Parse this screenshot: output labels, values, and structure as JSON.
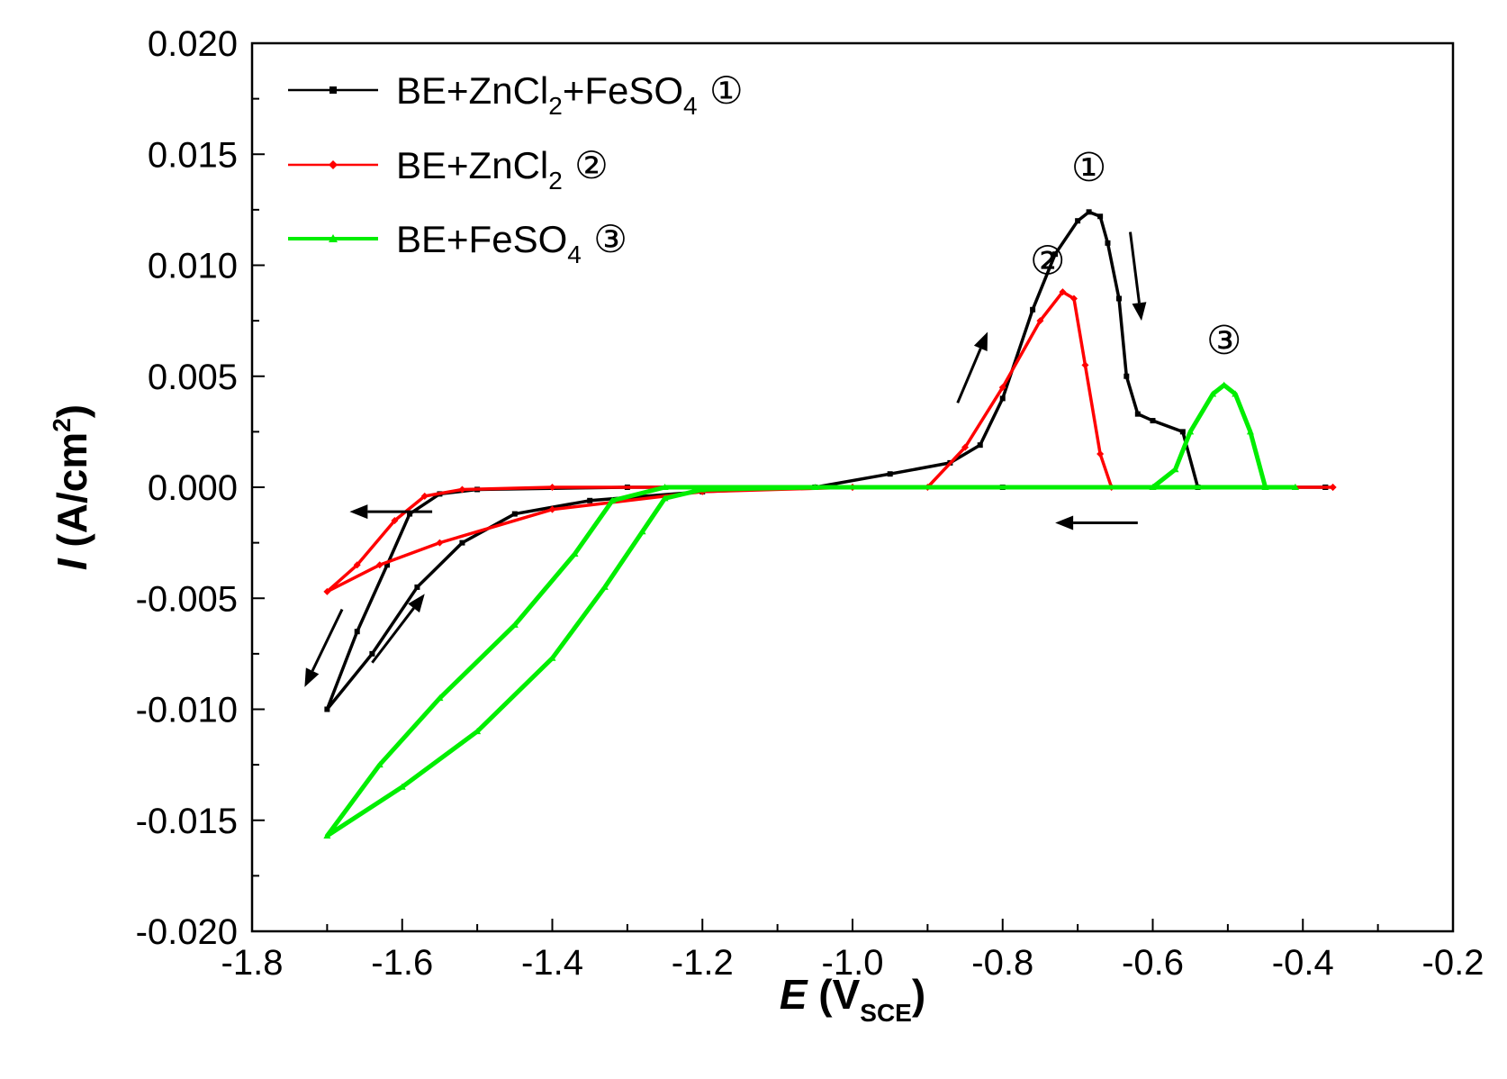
{
  "chart_data": {
    "type": "line",
    "title": "",
    "xlabel": {
      "main": "E",
      "paren_open": "(V",
      "sub": "SCE",
      "paren_close": ")"
    },
    "ylabel": {
      "main": "I",
      "rest": "(A/cm",
      "sup": "2",
      "close": ")"
    },
    "xlim": [
      -1.8,
      -0.2
    ],
    "ylim": [
      -0.02,
      0.02
    ],
    "x_ticks": [
      -1.8,
      -1.6,
      -1.4,
      -1.2,
      -1.0,
      -0.8,
      -0.6,
      -0.4,
      -0.2
    ],
    "x_tick_labels": [
      "-1.8",
      "-1.6",
      "-1.4",
      "-1.2",
      "-1.0",
      "-0.8",
      "-0.6",
      "-0.4",
      "-0.2"
    ],
    "y_ticks": [
      -0.02,
      -0.015,
      -0.01,
      -0.005,
      0.0,
      0.005,
      0.01,
      0.015,
      0.02
    ],
    "y_tick_labels": [
      "-0.020",
      "-0.015",
      "-0.010",
      "-0.005",
      "0.000",
      "0.005",
      "0.010",
      "0.015",
      "0.020"
    ],
    "legend_position": "top-left",
    "series": [
      {
        "name": "BE+ZnCl2+FeSO4 ①",
        "legend_parts": [
          "BE+ZnCl",
          "2",
          "+FeSO",
          "4",
          " ①"
        ],
        "color": "#000000",
        "marker": "square",
        "points": [
          [
            -0.37,
            0.0
          ],
          [
            -0.54,
            0.0
          ],
          [
            -0.56,
            0.0025
          ],
          [
            -0.6,
            0.003
          ],
          [
            -0.62,
            0.0033
          ],
          [
            -0.635,
            0.005
          ],
          [
            -0.645,
            0.0085
          ],
          [
            -0.66,
            0.011
          ],
          [
            -0.67,
            0.0122
          ],
          [
            -0.685,
            0.0124
          ],
          [
            -0.7,
            0.012
          ],
          [
            -0.73,
            0.0105
          ],
          [
            -0.76,
            0.008
          ],
          [
            -0.8,
            0.004
          ],
          [
            -0.83,
            0.0019
          ],
          [
            -0.87,
            0.0011
          ],
          [
            -0.95,
            0.0006
          ],
          [
            -1.05,
            0.0
          ],
          [
            -1.2,
            -0.0002
          ],
          [
            -1.35,
            -0.0006
          ],
          [
            -1.45,
            -0.0012
          ],
          [
            -1.52,
            -0.0025
          ],
          [
            -1.58,
            -0.0045
          ],
          [
            -1.64,
            -0.0075
          ],
          [
            -1.7,
            -0.01
          ],
          [
            -1.66,
            -0.0065
          ],
          [
            -1.62,
            -0.0035
          ],
          [
            -1.59,
            -0.0012
          ],
          [
            -1.55,
            -0.0003
          ],
          [
            -1.5,
            -0.0001
          ],
          [
            -1.3,
            0.0
          ],
          [
            -0.8,
            0.0
          ],
          [
            -0.37,
            0.0
          ]
        ]
      },
      {
        "name": "BE+ZnCl2 ②",
        "legend_parts": [
          "BE+ZnCl",
          "2",
          "",
          "",
          " ②"
        ],
        "color": "#ff0000",
        "marker": "diamond",
        "points": [
          [
            -0.36,
            0.0
          ],
          [
            -0.655,
            0.0
          ],
          [
            -0.67,
            0.0015
          ],
          [
            -0.69,
            0.0055
          ],
          [
            -0.705,
            0.0085
          ],
          [
            -0.72,
            0.0088
          ],
          [
            -0.75,
            0.0075
          ],
          [
            -0.8,
            0.0045
          ],
          [
            -0.85,
            0.0018
          ],
          [
            -0.9,
            0.0
          ],
          [
            -1.0,
            0.0
          ],
          [
            -1.2,
            -0.0002
          ],
          [
            -1.4,
            -0.001
          ],
          [
            -1.55,
            -0.0025
          ],
          [
            -1.63,
            -0.0035
          ],
          [
            -1.7,
            -0.0047
          ],
          [
            -1.66,
            -0.0035
          ],
          [
            -1.61,
            -0.0015
          ],
          [
            -1.57,
            -0.0004
          ],
          [
            -1.52,
            -0.0001
          ],
          [
            -1.4,
            0.0
          ],
          [
            -1.0,
            0.0
          ],
          [
            -0.36,
            0.0
          ]
        ]
      },
      {
        "name": "BE+FeSO4 ③",
        "legend_parts": [
          "BE+FeSO",
          "4",
          "",
          "",
          " ③"
        ],
        "color": "#00ee00",
        "marker": "triangle",
        "points": [
          [
            -0.41,
            0.0
          ],
          [
            -0.45,
            0.0
          ],
          [
            -0.47,
            0.0025
          ],
          [
            -0.49,
            0.0042
          ],
          [
            -0.505,
            0.0046
          ],
          [
            -0.52,
            0.0042
          ],
          [
            -0.55,
            0.0025
          ],
          [
            -0.57,
            0.0008
          ],
          [
            -0.6,
            0.0
          ],
          [
            -1.05,
            0.0
          ],
          [
            -1.2,
            -0.0001
          ],
          [
            -1.25,
            -0.0005
          ],
          [
            -1.28,
            -0.002
          ],
          [
            -1.33,
            -0.0045
          ],
          [
            -1.4,
            -0.0077
          ],
          [
            -1.5,
            -0.011
          ],
          [
            -1.6,
            -0.0135
          ],
          [
            -1.7,
            -0.0157
          ],
          [
            -1.63,
            -0.0125
          ],
          [
            -1.55,
            -0.0095
          ],
          [
            -1.45,
            -0.0062
          ],
          [
            -1.37,
            -0.003
          ],
          [
            -1.32,
            -0.0006
          ],
          [
            -1.25,
            0.0
          ],
          [
            -0.41,
            0.0
          ]
        ]
      }
    ],
    "peak_labels": [
      {
        "text": "①",
        "x": -0.685,
        "y": 0.0138
      },
      {
        "text": "②",
        "x": -0.74,
        "y": 0.0096
      },
      {
        "text": "③",
        "x": -0.505,
        "y": 0.006
      }
    ],
    "arrows": [
      {
        "from": [
          -1.56,
          -0.0011
        ],
        "to": [
          -1.67,
          -0.0011
        ],
        "color": "#000000"
      },
      {
        "from": [
          -0.62,
          -0.0016
        ],
        "to": [
          -0.73,
          -0.0016
        ],
        "color": "#000000"
      },
      {
        "from": [
          -1.68,
          -0.0055
        ],
        "to": [
          -1.73,
          -0.009
        ],
        "color": "#000000"
      },
      {
        "from": [
          -1.64,
          -0.0079
        ],
        "to": [
          -1.57,
          -0.0048
        ],
        "color": "#000000"
      },
      {
        "from": [
          -0.86,
          0.0038
        ],
        "to": [
          -0.82,
          0.007
        ],
        "color": "#000000"
      },
      {
        "from": [
          -0.63,
          0.0115
        ],
        "to": [
          -0.615,
          0.0075
        ],
        "color": "#000000"
      }
    ]
  }
}
